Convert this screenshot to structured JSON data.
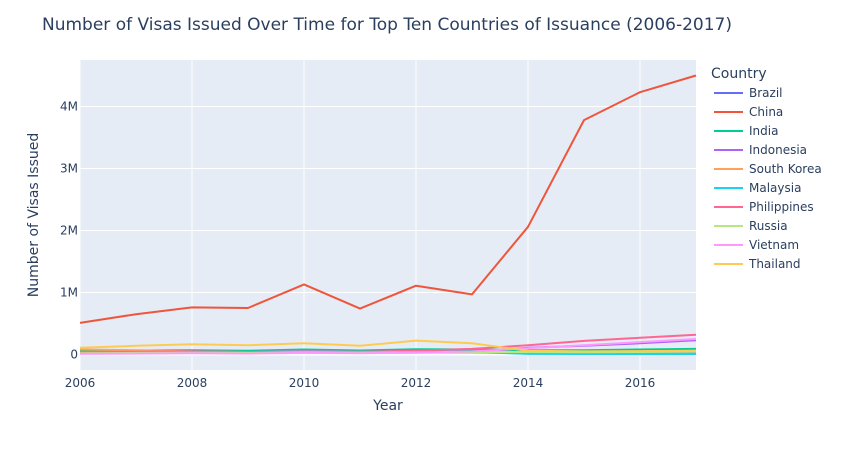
{
  "chart_data": {
    "type": "line",
    "title": "Number of Visas Issued Over Time for Top Ten Countries of Issuance (2006-2017)",
    "xlabel": "Year",
    "ylabel": "Number of Visas Issued",
    "legend_title": "Country",
    "legend_position": "right",
    "xlim": [
      2006,
      2017
    ],
    "ylim": [
      -250000,
      4750000
    ],
    "x_ticks": [
      2006,
      2008,
      2010,
      2012,
      2014,
      2016
    ],
    "x_tick_labels": [
      "2006",
      "2008",
      "2010",
      "2012",
      "2014",
      "2016"
    ],
    "y_ticks": [
      0,
      1000000,
      2000000,
      3000000,
      4000000
    ],
    "y_tick_labels": [
      "0",
      "1M",
      "2M",
      "3M",
      "4M"
    ],
    "grid": true,
    "plot_background": "#e5ecf6",
    "x": [
      2006,
      2007,
      2008,
      2009,
      2010,
      2011,
      2012,
      2013,
      2014,
      2015,
      2016,
      2017
    ],
    "series": [
      {
        "name": "Brazil",
        "color": "#636efa",
        "values": [
          30000,
          35000,
          40000,
          40000,
          45000,
          40000,
          60000,
          70000,
          30000,
          30000,
          30000,
          35000
        ]
      },
      {
        "name": "China",
        "color": "#ef553b",
        "values": [
          510000,
          650000,
          760000,
          750000,
          1130000,
          740000,
          1110000,
          970000,
          2060000,
          3780000,
          4230000,
          4500000
        ]
      },
      {
        "name": "India",
        "color": "#00cc96",
        "values": [
          60000,
          65000,
          70000,
          60000,
          80000,
          65000,
          85000,
          80000,
          70000,
          70000,
          80000,
          90000
        ]
      },
      {
        "name": "Indonesia",
        "color": "#ab63fa",
        "values": [
          20000,
          20000,
          25000,
          25000,
          30000,
          25000,
          30000,
          35000,
          110000,
          140000,
          180000,
          230000
        ]
      },
      {
        "name": "South Korea",
        "color": "#ffa15a",
        "values": [
          80000,
          70000,
          50000,
          40000,
          40000,
          30000,
          30000,
          30000,
          30000,
          40000,
          50000,
          60000
        ]
      },
      {
        "name": "Malaysia",
        "color": "#19d3f3",
        "values": [
          40000,
          40000,
          45000,
          40000,
          60000,
          45000,
          60000,
          40000,
          10000,
          8000,
          8000,
          8000
        ]
      },
      {
        "name": "Philippines",
        "color": "#ff6692",
        "values": [
          40000,
          45000,
          50000,
          40000,
          50000,
          45000,
          60000,
          90000,
          150000,
          220000,
          270000,
          320000
        ]
      },
      {
        "name": "Russia",
        "color": "#b6e880",
        "values": [
          20000,
          25000,
          30000,
          25000,
          35000,
          30000,
          35000,
          40000,
          40000,
          35000,
          40000,
          45000
        ]
      },
      {
        "name": "Vietnam",
        "color": "#ff97ff",
        "values": [
          10000,
          15000,
          20000,
          15000,
          25000,
          20000,
          30000,
          50000,
          100000,
          150000,
          200000,
          250000
        ]
      },
      {
        "name": "Thailand",
        "color": "#fecb52",
        "values": [
          110000,
          140000,
          165000,
          150000,
          180000,
          140000,
          225000,
          180000,
          60000,
          50000,
          55000,
          60000
        ]
      }
    ]
  }
}
